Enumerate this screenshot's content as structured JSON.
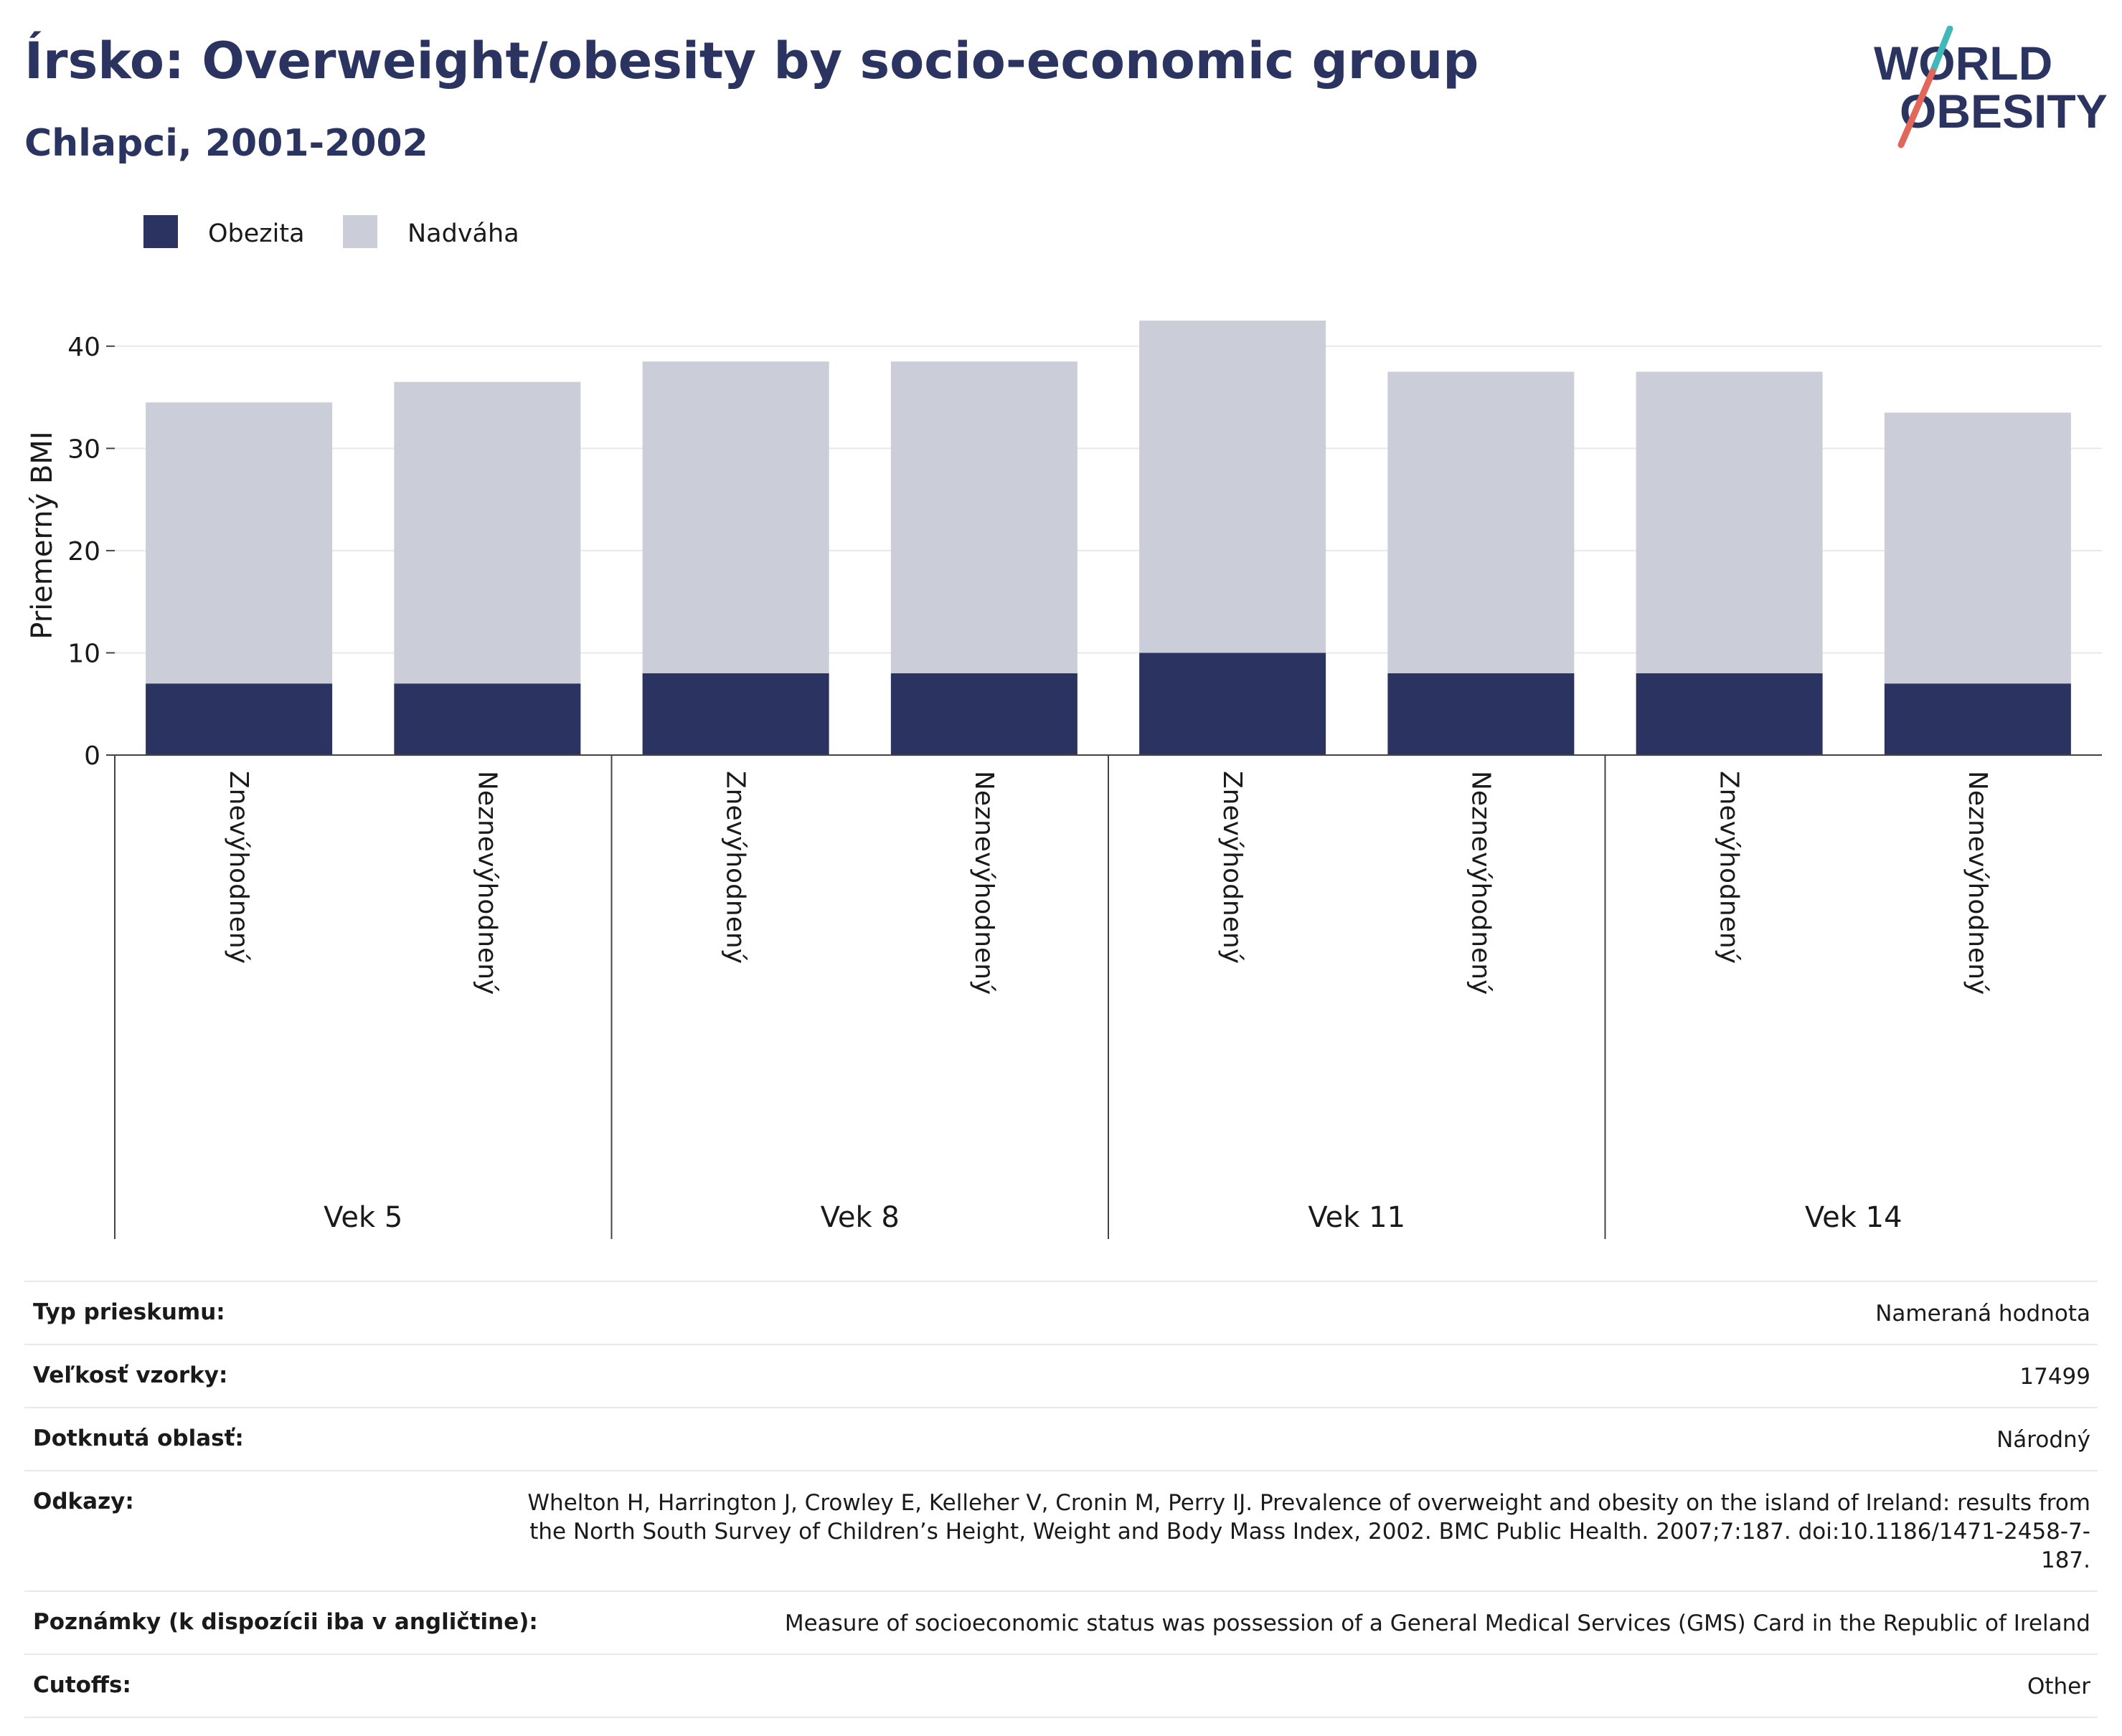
{
  "header": {
    "title": "Írsko: Overweight/obesity by socio-economic group",
    "subtitle": "Chlapci, 2001-2002"
  },
  "logo": {
    "line1": "WORLD",
    "line2": "OBESITY"
  },
  "colors": {
    "obesity": "#2b3460",
    "overweight": "#cbcdd9",
    "text": "#2b3460",
    "accent_teal": "#3fb8b7",
    "accent_red": "#e2675a"
  },
  "chart_data": {
    "type": "bar",
    "stacked": true,
    "legend": {
      "placement": "top-left"
    },
    "ylabel": "Priemerný BMI",
    "ylim": [
      0,
      43
    ],
    "yticks": [
      0,
      10,
      20,
      30,
      40
    ],
    "grid": true,
    "groups": [
      "Vek 5",
      "Vek 8",
      "Vek 11",
      "Vek 14"
    ],
    "categories": [
      "Znevýhodnený",
      "Neznevýhodnený",
      "Znevýhodnený",
      "Neznevýhodnený",
      "Znevýhodnený",
      "Neznevýhodnený",
      "Znevýhodnený",
      "Neznevýhodnený"
    ],
    "series": [
      {
        "name": "Obezita",
        "values": [
          7,
          7,
          8,
          8,
          10,
          8,
          8,
          7
        ]
      },
      {
        "name": "Nadváha",
        "values": [
          27.5,
          29.5,
          30.5,
          30.5,
          32.5,
          29.5,
          29.5,
          26.5
        ]
      }
    ]
  },
  "meta": [
    {
      "label": "Typ prieskumu:",
      "value": "Nameraná hodnota"
    },
    {
      "label": "Veľkosť vzorky:",
      "value": "17499"
    },
    {
      "label": "Dotknutá oblasť:",
      "value": "Národný"
    },
    {
      "label": "Odkazy:",
      "value": "Whelton H, Harrington J, Crowley E, Kelleher V, Cronin M, Perry IJ. Prevalence of overweight and obesity on the island of Ireland: results from the North South Survey of Children’s Height, Weight and Body Mass Index, 2002. BMC Public Health. 2007;7:187. doi:10.1186/1471-2458-7-187."
    },
    {
      "label": "Poznámky (k dispozícii iba v angličtine):",
      "value": "Measure of socioeconomic status was possession of a General Medical Services (GMS) Card in the Republic of Ireland"
    },
    {
      "label": "Cutoffs:",
      "value": "Other"
    }
  ]
}
